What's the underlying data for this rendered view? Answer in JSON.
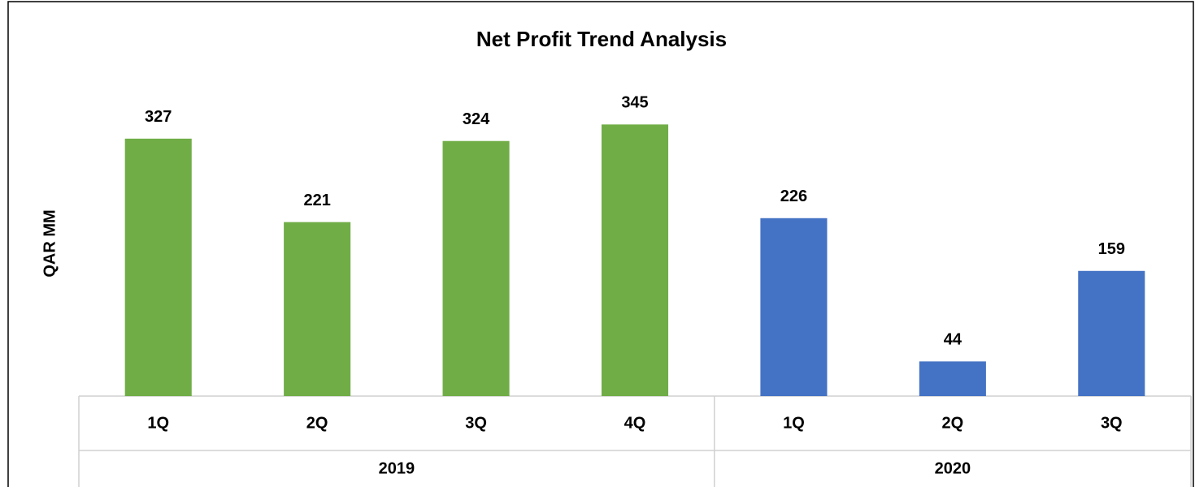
{
  "chart_data": {
    "type": "bar",
    "title": "Net Profit Trend Analysis",
    "y_label": "QAR MM",
    "groups": [
      {
        "name": "2019",
        "color": "#70ad47",
        "categories": [
          "1Q",
          "2Q",
          "3Q",
          "4Q"
        ],
        "values": [
          327,
          221,
          324,
          345
        ]
      },
      {
        "name": "2020",
        "color": "#4472c4",
        "categories": [
          "1Q",
          "2Q",
          "3Q"
        ],
        "values": [
          226,
          44,
          159
        ]
      }
    ],
    "ylim": [
      0,
      400
    ]
  }
}
